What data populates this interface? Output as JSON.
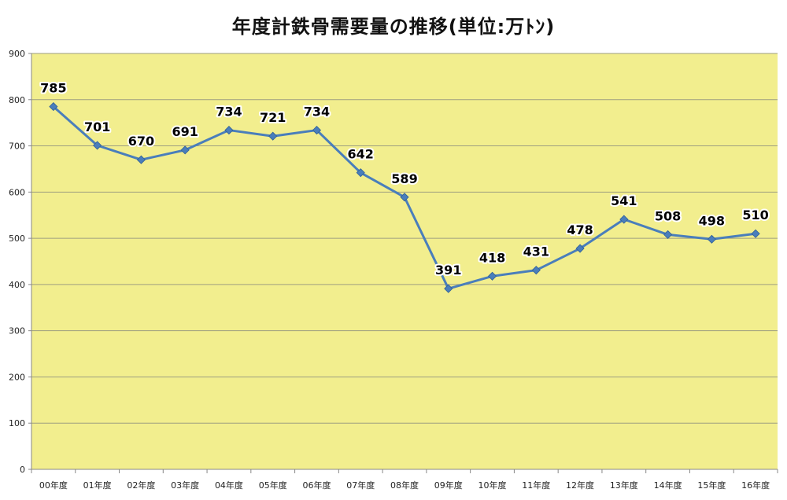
{
  "chart_data": {
    "type": "line",
    "title": "年度計鉄骨需要量の推移(単位:万ﾄﾝ)",
    "categories": [
      "00年度",
      "01年度",
      "02年度",
      "03年度",
      "04年度",
      "05年度",
      "06年度",
      "07年度",
      "08年度",
      "09年度",
      "10年度",
      "11年度",
      "12年度",
      "13年度",
      "14年度",
      "15年度",
      "16年度"
    ],
    "values": [
      785,
      701,
      670,
      691,
      734,
      721,
      734,
      642,
      589,
      391,
      418,
      431,
      478,
      541,
      508,
      498,
      510
    ],
    "data_labels": [
      "785",
      "701",
      "670",
      "691",
      "734",
      "721",
      "734",
      "642",
      "589",
      "391",
      "418",
      "431",
      "478",
      "541",
      "508",
      "498",
      "510"
    ],
    "y_ticks": [
      "0",
      "100",
      "200",
      "300",
      "400",
      "500",
      "600",
      "700",
      "800",
      "900"
    ],
    "ylim": [
      0,
      900
    ],
    "xlabel": "",
    "ylabel": "",
    "grid": true,
    "legend": "none",
    "colors": {
      "plot_background": "#F2EE8E",
      "series_line": "#4A7EBB",
      "gridline": "#9E9E80",
      "axis": "#888888"
    }
  }
}
